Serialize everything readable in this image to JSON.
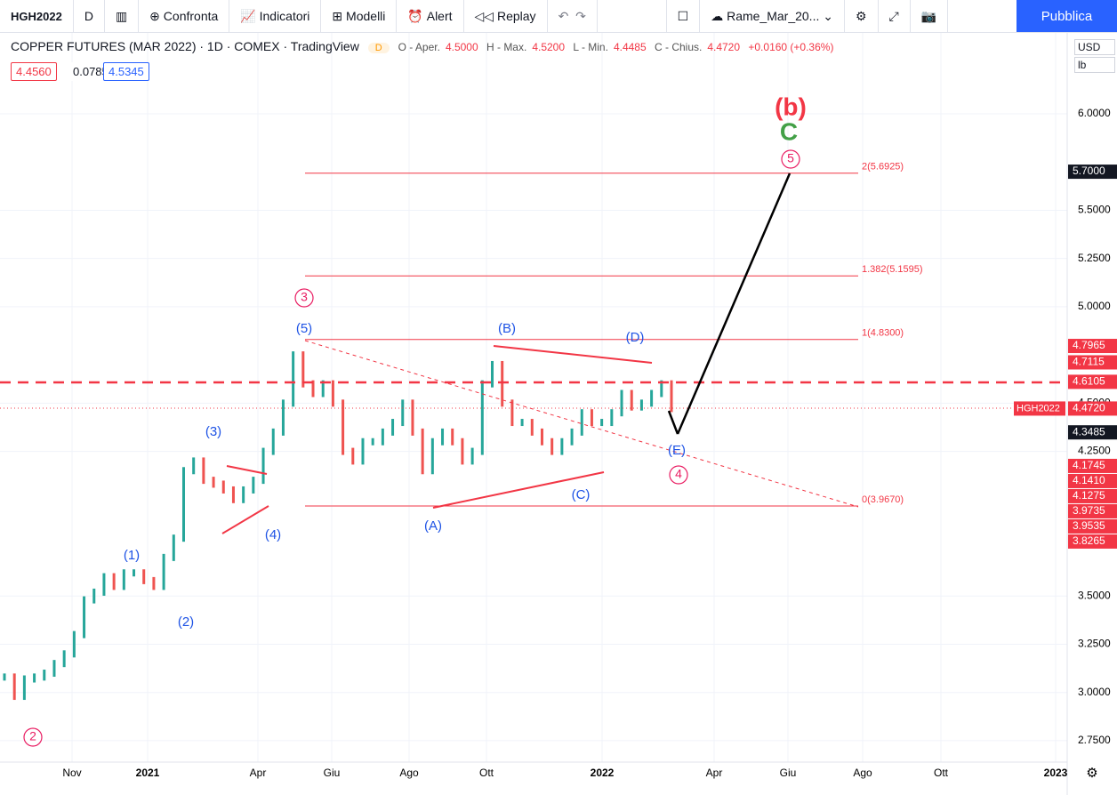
{
  "toolbar": {
    "symbol": "HGH2022",
    "interval": "D",
    "compare": "Confronta",
    "indicators": "Indicatori",
    "templates": "Modelli",
    "alert": "Alert",
    "replay": "Replay",
    "layout": "Rame_Mar_20...",
    "publish": "Pubblica"
  },
  "legend": {
    "title": "COPPER FUTURES (MAR 2022) · 1D · COMEX · TradingView",
    "badge": "D",
    "open_label": "O - Aper.",
    "open": "4.5000",
    "high_label": "H - Max.",
    "high": "4.5200",
    "low_label": "L - Min.",
    "low": "4.4485",
    "close_label": "C - Chius.",
    "close": "4.4720",
    "change": "+0.0160 (+0.36%)",
    "bid": "4.4560",
    "spread": "0.0785",
    "ask": "4.5345"
  },
  "scale": {
    "currency": "USD",
    "unit": "lb"
  },
  "price_axis": {
    "ticks": [
      {
        "value": 6,
        "label": "6.0000"
      },
      {
        "value": 5.5,
        "label": "5.5000"
      },
      {
        "value": 5.25,
        "label": "5.2500"
      },
      {
        "value": 5,
        "label": "5.0000"
      },
      {
        "value": 4.5,
        "label": "4.5000"
      },
      {
        "value": 4.25,
        "label": "4.2500"
      },
      {
        "value": 3.5,
        "label": "3.5000"
      },
      {
        "value": 3.25,
        "label": "3.2500"
      },
      {
        "value": 3,
        "label": "3.0000"
      },
      {
        "value": 2.75,
        "label": "2.7500"
      }
    ],
    "badges": [
      {
        "value": 5.7,
        "label": "5.7000",
        "color": "#131722"
      },
      {
        "value": 4.7965,
        "label": "4.7965",
        "color": "#f23645"
      },
      {
        "value": 4.7115,
        "label": "4.7115",
        "color": "#f23645"
      },
      {
        "value": 4.6105,
        "label": "4.6105",
        "color": "#f23645"
      },
      {
        "value": 4.472,
        "label": "4.4720",
        "color": "#f23645",
        "symbol": "HGH2022"
      },
      {
        "value": 4.3485,
        "label": "4.3485",
        "color": "#131722"
      },
      {
        "value": 4.1745,
        "label": "4.1745",
        "color": "#f23645"
      },
      {
        "value": 4.141,
        "label": "4.1410",
        "color": "#f23645"
      },
      {
        "value": 4.1275,
        "label": "4.1275",
        "color": "#f23645"
      },
      {
        "value": 3.9735,
        "label": "3.9735",
        "color": "#f23645"
      },
      {
        "value": 3.9535,
        "label": "3.9535",
        "color": "#f23645"
      },
      {
        "value": 3.8265,
        "label": "3.8265",
        "color": "#f23645"
      }
    ]
  },
  "time_axis": [
    "Nov",
    "2021",
    "Apr",
    "Giu",
    "Ago",
    "Ott",
    "2022",
    "Apr",
    "Giu",
    "Ago",
    "Ott",
    "2023"
  ],
  "fib_levels": [
    {
      "value": 5.6925,
      "label": "2(5.6925)"
    },
    {
      "value": 5.1595,
      "label": "1.382(5.1595)"
    },
    {
      "value": 4.83,
      "label": "1(4.8300)"
    },
    {
      "value": 3.967,
      "label": "0(3.9670)"
    }
  ],
  "weekly_closes": [
    3.08,
    2.98,
    3.07,
    3.08,
    3.1,
    3.15,
    3.2,
    3.3,
    3.48,
    3.52,
    3.6,
    3.55,
    3.62,
    3.62,
    3.58,
    3.55,
    3.7,
    3.8,
    4.15,
    4.2,
    4.1,
    4.08,
    4.05,
    4.0,
    4.05,
    4.1,
    4.25,
    4.35,
    4.5,
    4.75,
    4.6,
    4.55,
    4.6,
    4.5,
    4.25,
    4.2,
    4.3,
    4.3,
    4.35,
    4.4,
    4.5,
    4.35,
    4.15,
    4.3,
    4.35,
    4.3,
    4.2,
    4.25,
    4.6,
    4.7,
    4.5,
    4.4,
    4.4,
    4.35,
    4.3,
    4.25,
    4.3,
    4.35,
    4.45,
    4.4,
    4.4,
    4.45,
    4.55,
    4.48,
    4.5,
    4.55,
    4.6,
    4.472
  ],
  "annotations": [
    {
      "text": "(b)",
      "color": "#f23645"
    },
    {
      "text": "C",
      "color": "#43a047"
    },
    {
      "text": "5",
      "color": "#e91e63",
      "circled": true
    },
    {
      "text": "3",
      "color": "#e91e63",
      "circled": true
    },
    {
      "text": "(5)",
      "color": "#1e53e5"
    },
    {
      "text": "(B)",
      "color": "#1e53e5"
    },
    {
      "text": "(D)",
      "color": "#1e53e5"
    },
    {
      "text": "(3)",
      "color": "#1e53e5"
    },
    {
      "text": "(E)",
      "color": "#1e53e5"
    },
    {
      "text": "4",
      "color": "#e91e63",
      "circled": true
    },
    {
      "text": "(4)",
      "color": "#1e53e5"
    },
    {
      "text": "(1)",
      "color": "#1e53e5"
    },
    {
      "text": "(2)",
      "color": "#1e53e5"
    },
    {
      "text": "(A)",
      "color": "#1e53e5"
    },
    {
      "text": "(C)",
      "color": "#1e53e5"
    },
    {
      "text": "2",
      "color": "#e91e63",
      "circled": true
    }
  ]
}
